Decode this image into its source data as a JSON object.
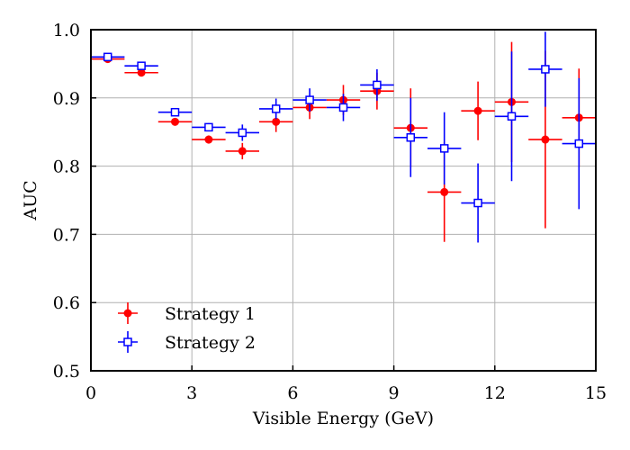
{
  "chart_data": {
    "type": "scatter",
    "title": "",
    "xlabel": "Visible Energy (GeV)",
    "ylabel": "AUC",
    "xlim": [
      0,
      15
    ],
    "ylim": [
      0.5,
      1.0
    ],
    "xticks": [
      0,
      3,
      6,
      9,
      12,
      15
    ],
    "xtick_labels": [
      "0",
      "3",
      "6",
      "9",
      "12",
      "15"
    ],
    "yticks": [
      0.5,
      0.6,
      0.7,
      0.8,
      0.9,
      1.0
    ],
    "ytick_labels": [
      "0.5",
      "0.6",
      "0.7",
      "0.8",
      "0.9",
      "1.0"
    ],
    "grid": true,
    "legend_position": "lower-left",
    "bin_half_width": 0.5,
    "series": [
      {
        "name": "Strategy 1",
        "color": "#ff0000",
        "marker": "filled-circle",
        "x": [
          0.5,
          1.5,
          2.5,
          3.5,
          4.5,
          5.5,
          6.5,
          7.5,
          8.5,
          9.5,
          10.5,
          11.5,
          12.5,
          13.5,
          14.5
        ],
        "y": [
          0.957,
          0.937,
          0.865,
          0.839,
          0.822,
          0.865,
          0.886,
          0.897,
          0.91,
          0.856,
          0.762,
          0.881,
          0.894,
          0.839,
          0.871
        ],
        "yerr": [
          0.003,
          0.004,
          0.005,
          0.006,
          0.012,
          0.015,
          0.017,
          0.022,
          0.027,
          0.058,
          0.073,
          0.043,
          0.088,
          0.13,
          0.072
        ]
      },
      {
        "name": "Strategy 2",
        "color": "#0000ff",
        "marker": "open-square",
        "x": [
          0.5,
          1.5,
          2.5,
          3.5,
          4.5,
          5.5,
          6.5,
          7.5,
          8.5,
          9.5,
          10.5,
          11.5,
          12.5,
          13.5,
          14.5
        ],
        "y": [
          0.96,
          0.947,
          0.879,
          0.857,
          0.849,
          0.884,
          0.897,
          0.886,
          0.919,
          0.842,
          0.826,
          0.746,
          0.873,
          0.942,
          0.833
        ],
        "yerr": [
          0.003,
          0.004,
          0.005,
          0.006,
          0.012,
          0.015,
          0.017,
          0.02,
          0.023,
          0.058,
          0.053,
          0.058,
          0.095,
          0.055,
          0.096
        ]
      }
    ]
  }
}
